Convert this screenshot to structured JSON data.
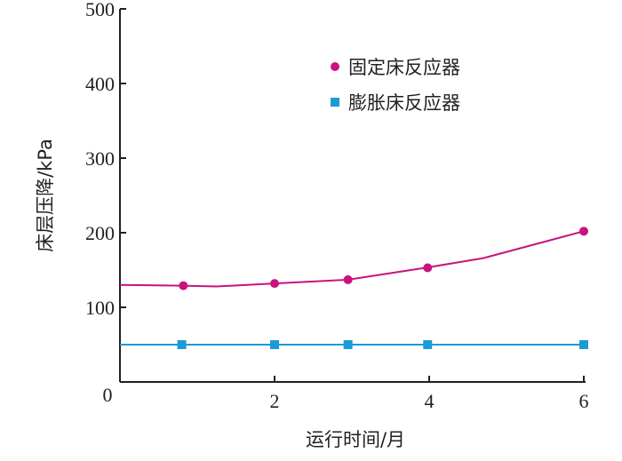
{
  "chart_data": {
    "type": "line",
    "xlabel": "运行时间/月",
    "ylabel": "床层压降/kPa",
    "xlim": [
      0,
      6
    ],
    "ylim": [
      0,
      500
    ],
    "xticks": [
      0,
      2,
      4,
      6
    ],
    "yticks": [
      100,
      200,
      300,
      400,
      500
    ],
    "origin_label": "0",
    "grid": false,
    "legend_position": "top-right",
    "series": [
      {
        "name": "固定床反应器",
        "color": "#c8137e",
        "marker": "circle",
        "line": [
          [
            0,
            130
          ],
          [
            0.8,
            129
          ],
          [
            1.25,
            128
          ],
          [
            2,
            132
          ],
          [
            2.95,
            137
          ],
          [
            3.95,
            153
          ],
          [
            4.7,
            166
          ],
          [
            6,
            202
          ]
        ],
        "markers": [
          [
            0.82,
            129
          ],
          [
            2,
            132
          ],
          [
            2.95,
            137
          ],
          [
            3.98,
            153
          ],
          [
            6,
            202
          ]
        ]
      },
      {
        "name": "膨胀床反应器",
        "color": "#1a9bd7",
        "marker": "square",
        "line": [
          [
            0,
            50
          ],
          [
            6,
            50
          ]
        ],
        "markers": [
          [
            0.8,
            50
          ],
          [
            2,
            50
          ],
          [
            2.95,
            50
          ],
          [
            3.98,
            50
          ],
          [
            6,
            50
          ]
        ]
      }
    ]
  }
}
